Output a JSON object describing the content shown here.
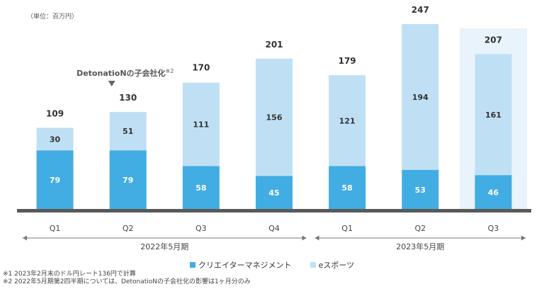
{
  "unit_note": "（単位：百万円）",
  "colors": {
    "management": "#41ADE2",
    "esports": "#BFE0F4",
    "highlight_bg": "#E9F3FB",
    "baseline": "#595959",
    "text": "#333333"
  },
  "chart_data": {
    "type": "bar",
    "stacked": true,
    "categories": [
      "Q1",
      "Q2",
      "Q3",
      "Q4",
      "Q1",
      "Q2",
      "Q3"
    ],
    "series": [
      {
        "name": "クリエイターマネジメント",
        "values": [
          79,
          79,
          58,
          45,
          58,
          53,
          46
        ]
      },
      {
        "name": "eスポーツ",
        "values": [
          30,
          51,
          111,
          156,
          121,
          194,
          161
        ]
      }
    ],
    "totals": [
      109,
      130,
      170,
      201,
      179,
      247,
      207
    ],
    "periods": [
      {
        "label": "2022年5月期",
        "start_index": 0,
        "end_index": 3
      },
      {
        "label": "2023年5月期",
        "start_index": 4,
        "end_index": 6
      }
    ],
    "highlight_index": 6,
    "annotation": {
      "text": "DetonatioNの子会社化",
      "sup": "※2",
      "category_index": 1
    },
    "ylim": [
      0,
      247
    ]
  },
  "legend": [
    {
      "label": "クリエイターマネジメント",
      "color_key": "management"
    },
    {
      "label": "eスポーツ",
      "color_key": "esports"
    }
  ],
  "footnotes": [
    "※1 2023年2月末のドル円レート136円で計算",
    "※2 2022年5月期第2四半期については、DetonatioNの子会社化の影響は1ヶ月分のみ"
  ]
}
